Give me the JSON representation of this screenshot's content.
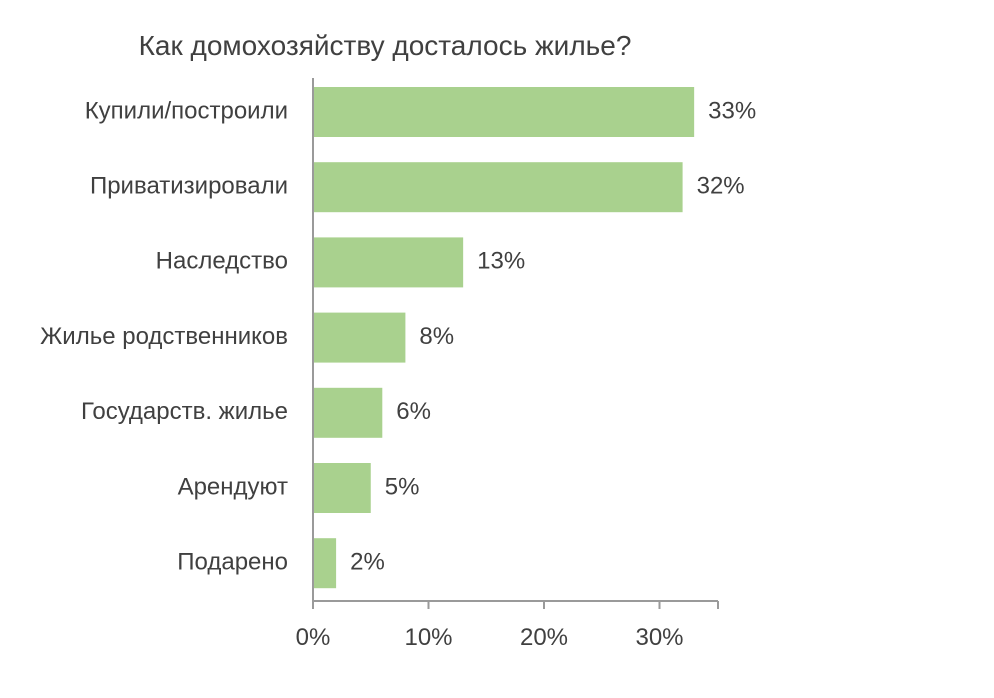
{
  "chart_data": {
    "type": "bar",
    "orientation": "horizontal",
    "title": "Как домохозяйству досталось жилье?",
    "categories": [
      "Купили/построили",
      "Приватизировали",
      "Наследство",
      "Жилье родственников",
      "Государств. жилье",
      "Арендуют",
      "Подарено"
    ],
    "values": [
      33,
      32,
      13,
      8,
      6,
      5,
      2
    ],
    "value_labels": [
      "33%",
      "32%",
      "13%",
      "8%",
      "6%",
      "5%",
      "2%"
    ],
    "xlim": [
      0,
      35
    ],
    "x_ticks": [
      0,
      10,
      20,
      30
    ],
    "x_tick_labels": [
      "0%",
      "10%",
      "20%",
      "30%"
    ],
    "grid": false,
    "legend": "none",
    "bar_color": "#a9d18e",
    "text_color": "#404040",
    "axis_color": "#9a9a9a"
  }
}
